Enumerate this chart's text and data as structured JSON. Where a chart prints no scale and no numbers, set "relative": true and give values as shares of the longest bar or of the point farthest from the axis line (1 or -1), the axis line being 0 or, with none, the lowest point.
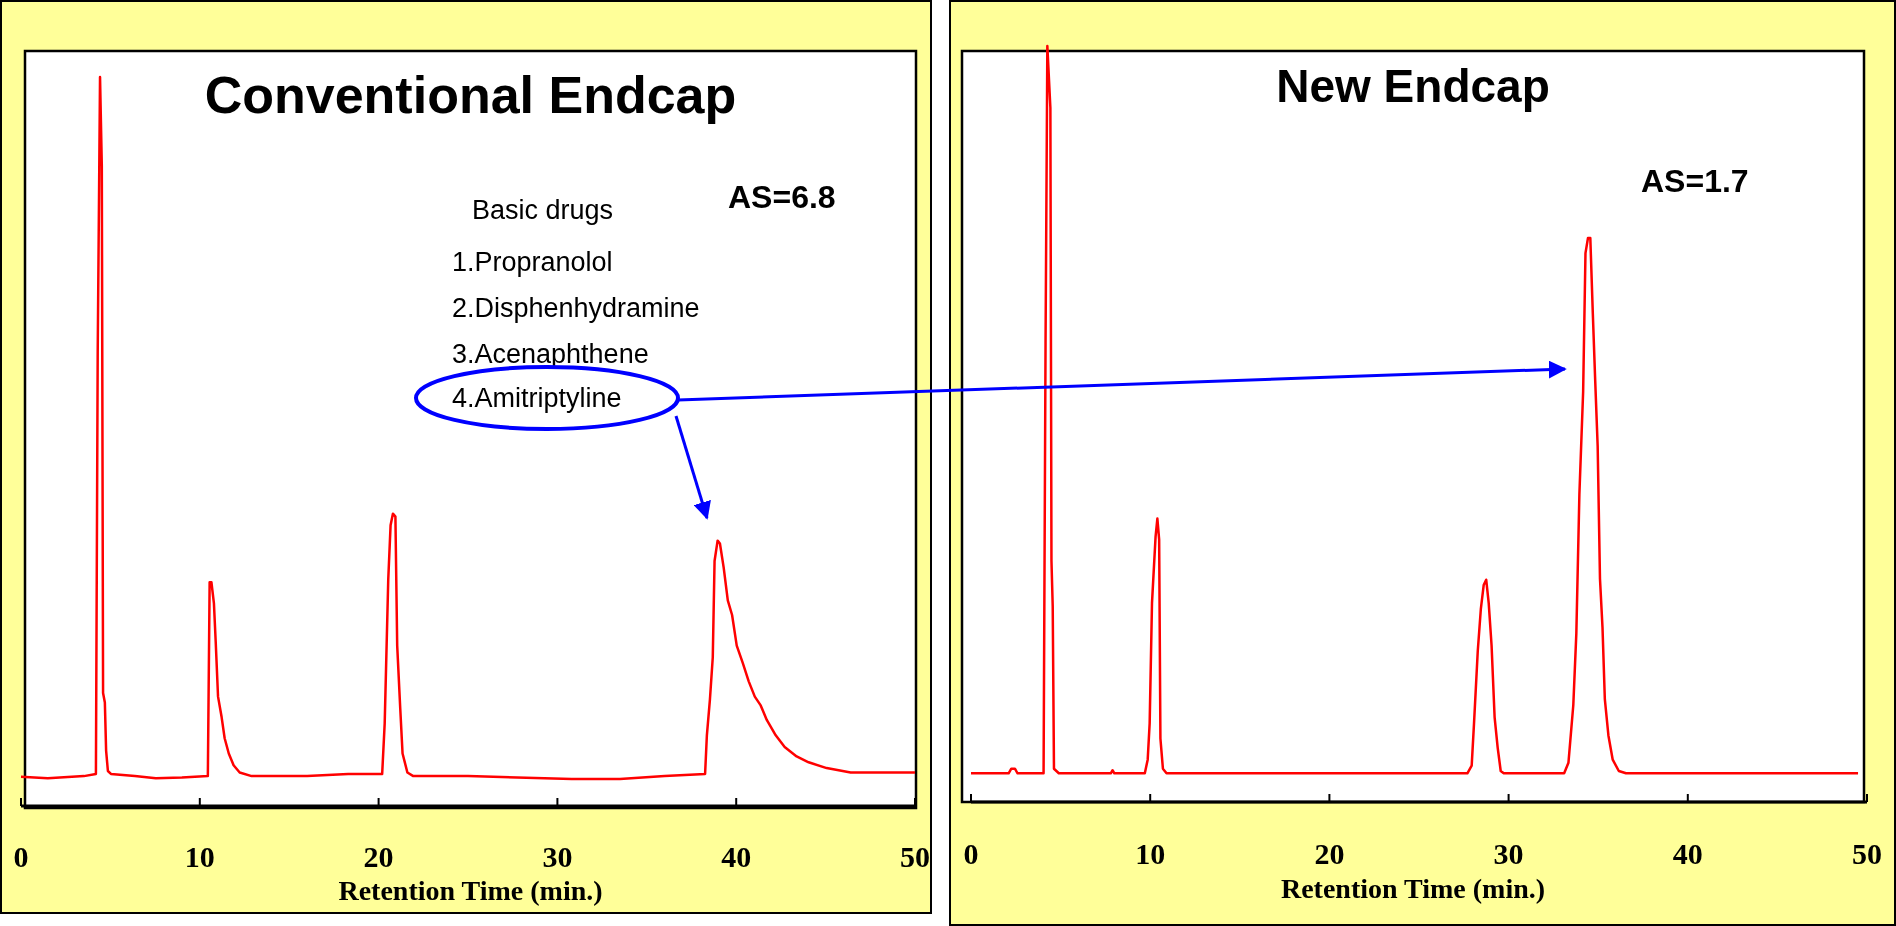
{
  "chart_data": [
    {
      "type": "line",
      "title": "Conventional Endcap",
      "xlabel": "Retention Time (min.)",
      "relative": true,
      "xlim": [
        0,
        50
      ],
      "xticks": [
        0,
        10,
        20,
        30,
        40,
        50
      ],
      "annotations": [
        "Basic drugs",
        "1.Propranolol",
        "2.Disphenhydramine",
        "3.Acenaphthene",
        "4.Amitriptyline",
        "AS=6.8"
      ],
      "series": [
        {
          "color": "#ff0000",
          "x": [
            0,
            1.5,
            3.52,
            4.19,
            4.29,
            4.42,
            4.52,
            4.59,
            4.69,
            4.76,
            4.86,
            5.03,
            6.37,
            7.54,
            9,
            10.45,
            10.55,
            10.65,
            10.79,
            10.89,
            11.02,
            11.22,
            11.39,
            11.62,
            11.89,
            12.23,
            12.9,
            16,
            18.3,
            20.2,
            20.34,
            20.54,
            20.67,
            20.8,
            20.94,
            21.04,
            21.21,
            21.34,
            21.61,
            21.94,
            25,
            30.8,
            33.5,
            36,
            38.26,
            38.36,
            38.53,
            38.69,
            38.79,
            38.96,
            39.09,
            39.3,
            39.53,
            39.77,
            40.03,
            40.37,
            40.7,
            41.04,
            41.37,
            41.71,
            42.21,
            42.71,
            43.38,
            44.05,
            45.06,
            46.4,
            50
          ],
          "values": [
            0.04,
            0.038,
            0.041,
            0.044,
            0.623,
            1.0,
            0.878,
            0.155,
            0.142,
            0.076,
            0.048,
            0.044,
            0.041,
            0.038,
            0.039,
            0.041,
            0.307,
            0.307,
            0.278,
            0.225,
            0.15,
            0.122,
            0.093,
            0.072,
            0.056,
            0.046,
            0.041,
            0.041,
            0.044,
            0.044,
            0.113,
            0.311,
            0.385,
            0.401,
            0.397,
            0.22,
            0.134,
            0.072,
            0.046,
            0.041,
            0.041,
            0.037,
            0.037,
            0.041,
            0.044,
            0.097,
            0.146,
            0.204,
            0.336,
            0.364,
            0.36,
            0.327,
            0.282,
            0.262,
            0.22,
            0.196,
            0.171,
            0.15,
            0.138,
            0.118,
            0.097,
            0.081,
            0.068,
            0.06,
            0.052,
            0.046,
            0.046
          ]
        }
      ]
    },
    {
      "type": "line",
      "title": "New Endcap",
      "xlabel": "Retention Time (min.)",
      "relative": true,
      "xlim": [
        0,
        50
      ],
      "xticks": [
        0,
        10,
        20,
        30,
        40,
        50
      ],
      "annotations": [
        "AS=1.7"
      ],
      "series": [
        {
          "color": "#ff0000",
          "x": [
            0,
            2.1,
            2.25,
            2.45,
            2.6,
            4.05,
            4.16,
            4.26,
            4.43,
            4.49,
            4.56,
            4.63,
            4.9,
            7.8,
            7.9,
            8.0,
            9.7,
            9.86,
            9.97,
            10.1,
            10.3,
            10.4,
            10.5,
            10.57,
            10.71,
            10.91,
            27.7,
            27.94,
            28.07,
            28.28,
            28.45,
            28.61,
            28.75,
            28.89,
            29.05,
            29.22,
            29.39,
            29.56,
            29.73,
            33.1,
            33.34,
            33.61,
            33.78,
            33.95,
            34.16,
            34.29,
            34.43,
            34.56,
            34.7,
            34.83,
            34.97,
            35.1,
            35.24,
            35.37,
            35.57,
            35.81,
            36.15,
            36.55,
            49.5
          ],
          "values": [
            0.038,
            0.038,
            0.044,
            0.044,
            0.038,
            0.038,
            0.607,
            1.0,
            0.918,
            0.319,
            0.259,
            0.044,
            0.038,
            0.038,
            0.042,
            0.038,
            0.038,
            0.056,
            0.104,
            0.263,
            0.351,
            0.375,
            0.347,
            0.084,
            0.044,
            0.038,
            0.038,
            0.048,
            0.104,
            0.2,
            0.255,
            0.287,
            0.294,
            0.263,
            0.207,
            0.112,
            0.072,
            0.041,
            0.038,
            0.038,
            0.052,
            0.128,
            0.223,
            0.407,
            0.543,
            0.726,
            0.746,
            0.746,
            0.646,
            0.559,
            0.471,
            0.295,
            0.231,
            0.136,
            0.088,
            0.056,
            0.041,
            0.038,
            0.038
          ]
        }
      ]
    }
  ]
}
